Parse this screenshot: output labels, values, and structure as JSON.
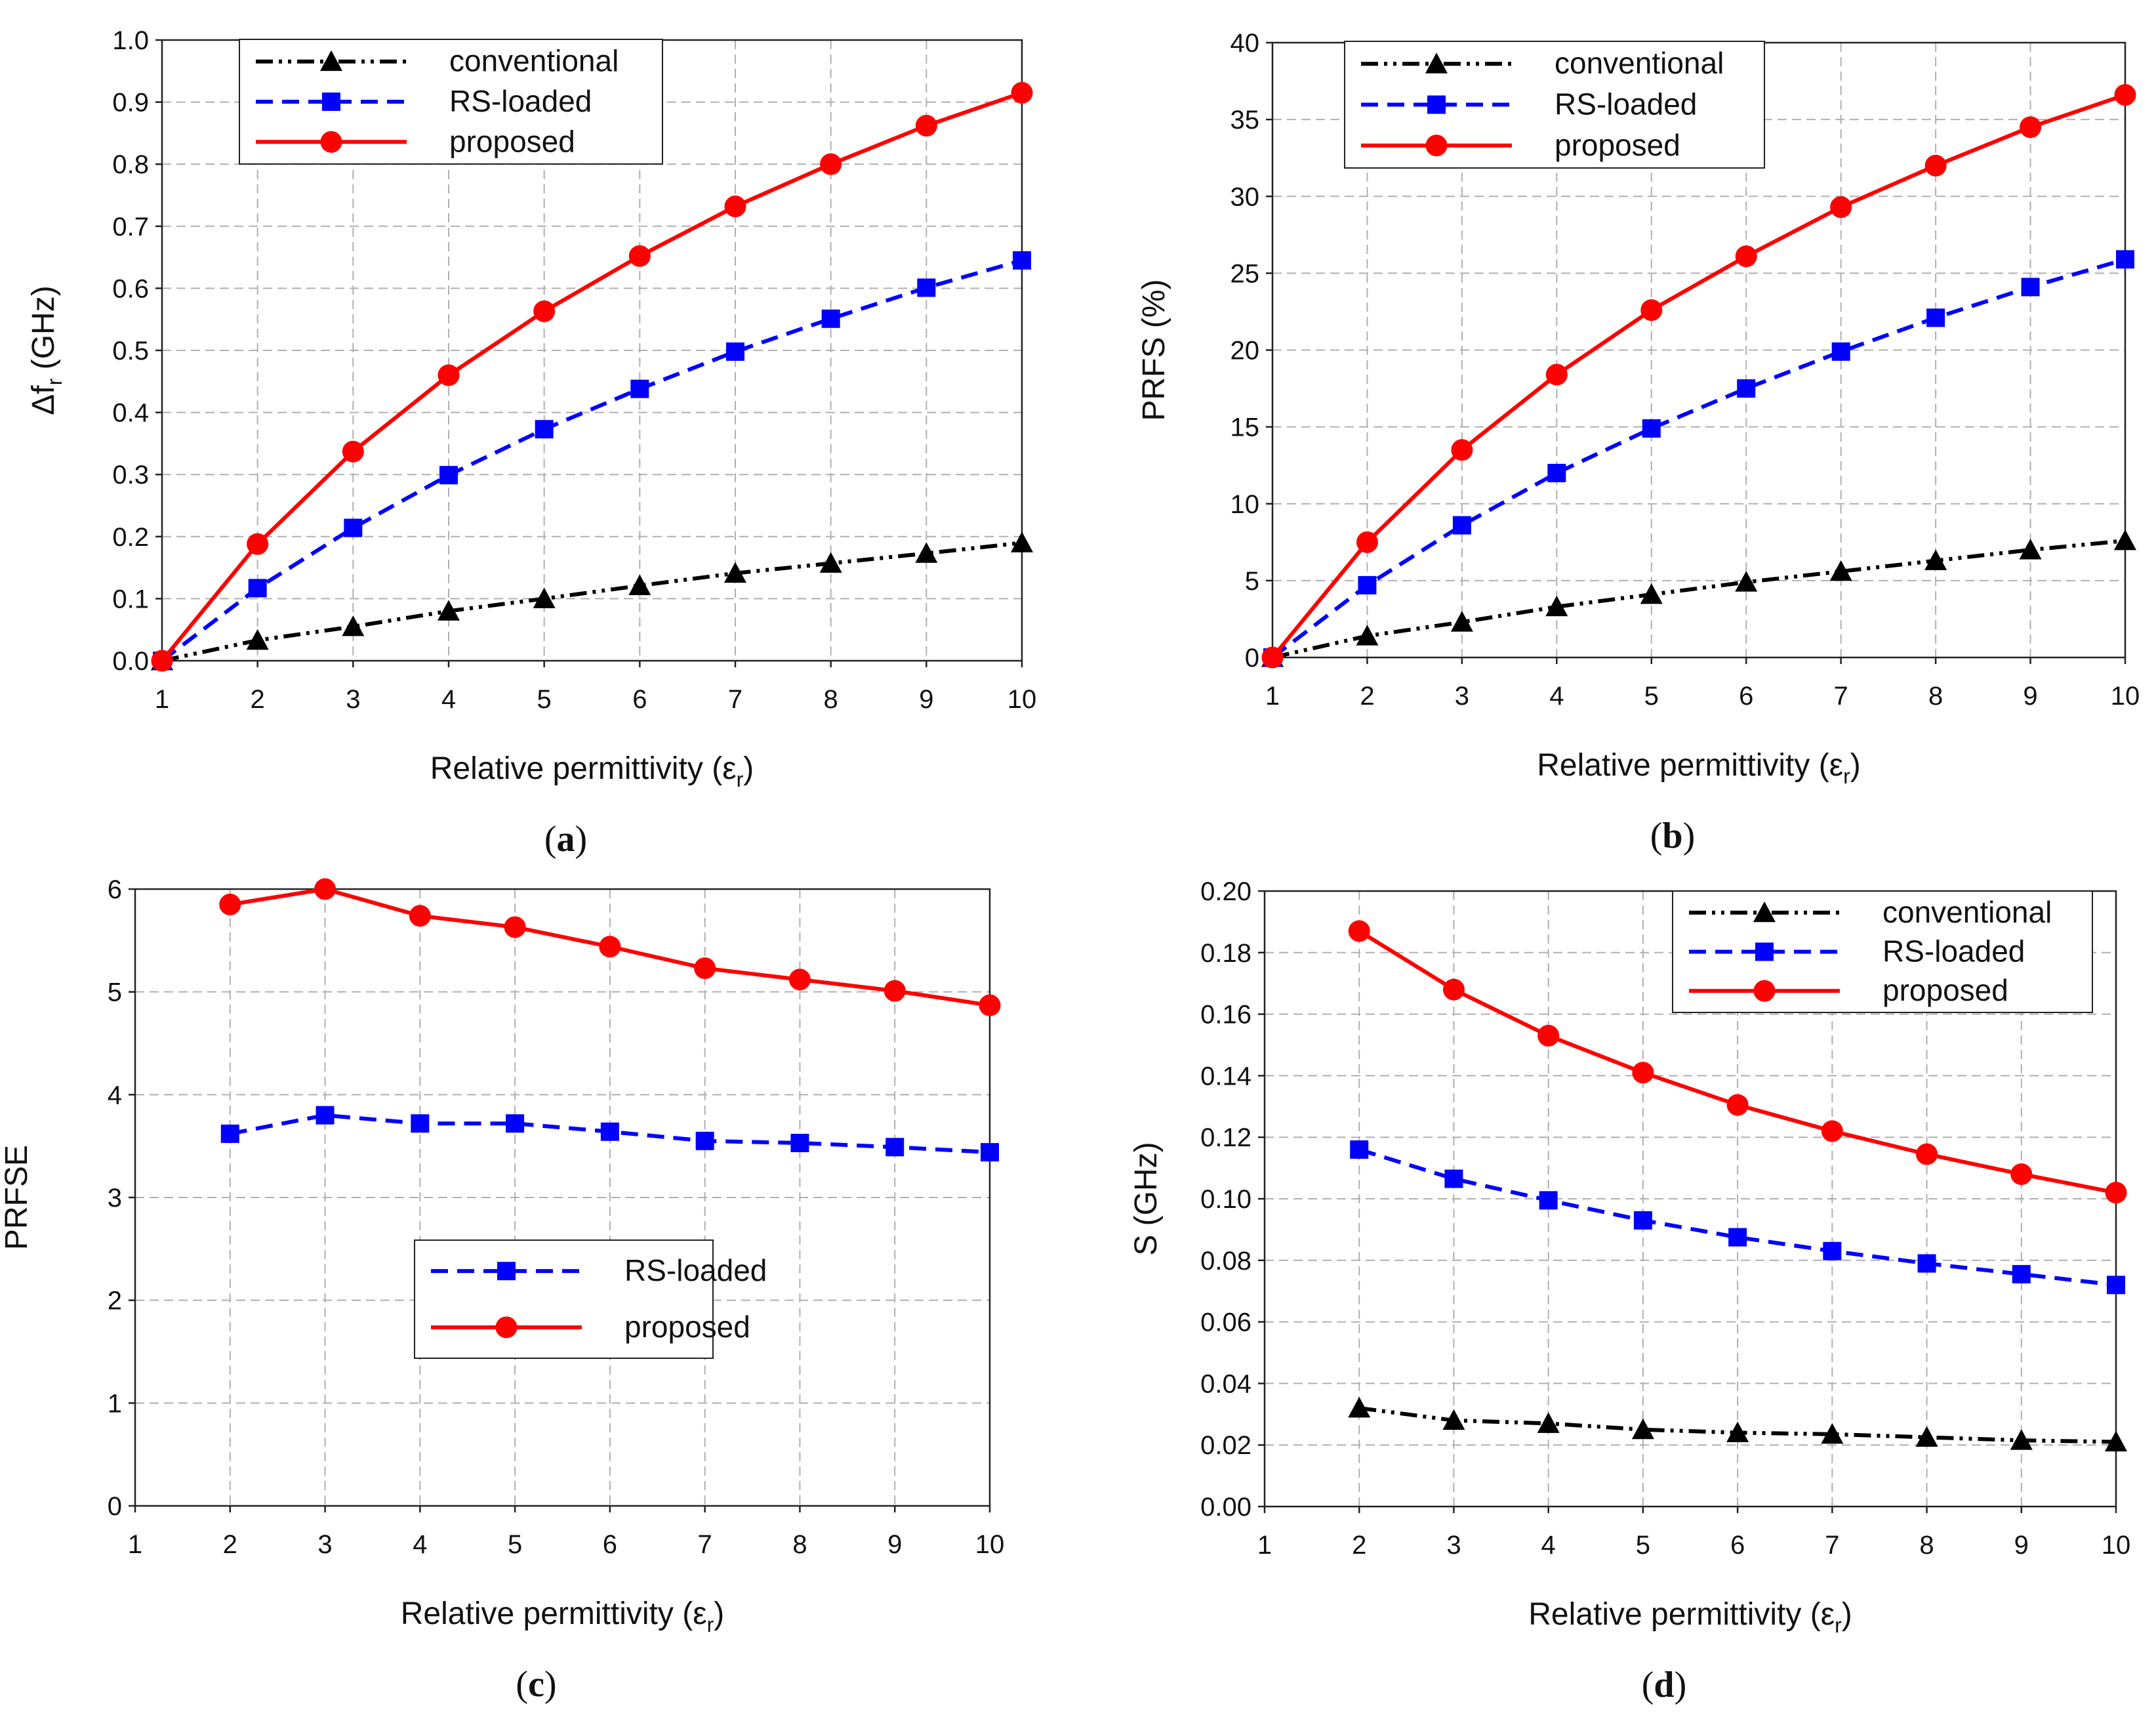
{
  "colors": {
    "conventional": "#000000",
    "rs_loaded": "#0000ff",
    "proposed": "#ff0000",
    "grid": "#b0b0b0",
    "axis": "#222222"
  },
  "chart_data": [
    {
      "type": "line",
      "panel_label": "(a)",
      "panel_letter": "a",
      "xlabel": "Relative permittivity (ε",
      "xlabel_sub": "r",
      "ylabel": "Δf",
      "ylabel_sub": "r",
      "ylabel_suffix": " (GHz)",
      "x": [
        1,
        2,
        3,
        4,
        5,
        6,
        7,
        8,
        9,
        10
      ],
      "xlim": [
        1,
        10
      ],
      "ylim": [
        0,
        1.0
      ],
      "ystep": 0.1,
      "ydecimals": 1,
      "xticks": [
        "1",
        "2",
        "3",
        "4",
        "5",
        "6",
        "7",
        "8",
        "9",
        "10"
      ],
      "grid": true,
      "legend_position": "top-left",
      "series": [
        {
          "name": "conventional",
          "key": "conventional",
          "marker": "triangle",
          "dash": "dashdotdot",
          "x": [
            1,
            2,
            3,
            4,
            5,
            6,
            7,
            8,
            9,
            10
          ],
          "values": [
            0,
            0.033,
            0.055,
            0.08,
            0.1,
            0.121,
            0.141,
            0.157,
            0.173,
            0.19
          ]
        },
        {
          "name": "RS-loaded",
          "key": "rs_loaded",
          "marker": "square",
          "dash": "dashed",
          "x": [
            1,
            2,
            3,
            4,
            5,
            6,
            7,
            8,
            9,
            10
          ],
          "values": [
            0,
            0.117,
            0.214,
            0.299,
            0.373,
            0.438,
            0.498,
            0.551,
            0.601,
            0.645
          ]
        },
        {
          "name": "proposed",
          "key": "proposed",
          "marker": "circle",
          "dash": "solid",
          "x": [
            1,
            2,
            3,
            4,
            5,
            6,
            7,
            8,
            9,
            10
          ],
          "values": [
            0,
            0.188,
            0.337,
            0.46,
            0.563,
            0.652,
            0.732,
            0.8,
            0.862,
            0.915
          ]
        }
      ]
    },
    {
      "type": "line",
      "panel_label": "(b)",
      "panel_letter": "b",
      "xlabel": "Relative permittivity (ε",
      "xlabel_sub": "r",
      "ylabel": "PRFS (%)",
      "ylabel_sub": "",
      "ylabel_suffix": "",
      "x": [
        1,
        2,
        3,
        4,
        5,
        6,
        7,
        8,
        9,
        10
      ],
      "xlim": [
        1,
        10
      ],
      "ylim": [
        0,
        40
      ],
      "ystep": 5,
      "ydecimals": 0,
      "xticks": [
        "1",
        "2",
        "3",
        "4",
        "5",
        "6",
        "7",
        "8",
        "9",
        "10"
      ],
      "grid": true,
      "legend_position": "top-left",
      "series": [
        {
          "name": "conventional",
          "key": "conventional",
          "marker": "triangle",
          "dash": "dashdotdot",
          "x": [
            1,
            2,
            3,
            4,
            5,
            6,
            7,
            8,
            9,
            10
          ],
          "values": [
            0,
            1.4,
            2.3,
            3.3,
            4.1,
            4.9,
            5.6,
            6.3,
            7.0,
            7.6
          ]
        },
        {
          "name": "RS-loaded",
          "key": "rs_loaded",
          "marker": "square",
          "dash": "dashed",
          "x": [
            1,
            2,
            3,
            4,
            5,
            6,
            7,
            8,
            9,
            10
          ],
          "values": [
            0,
            4.7,
            8.6,
            12.0,
            14.9,
            17.5,
            19.9,
            22.1,
            24.1,
            25.9
          ]
        },
        {
          "name": "proposed",
          "key": "proposed",
          "marker": "circle",
          "dash": "solid",
          "x": [
            1,
            2,
            3,
            4,
            5,
            6,
            7,
            8,
            9,
            10
          ],
          "values": [
            0,
            7.5,
            13.5,
            18.4,
            22.6,
            26.1,
            29.3,
            32.0,
            34.5,
            36.6
          ]
        }
      ]
    },
    {
      "type": "line",
      "panel_label": "(c)",
      "panel_letter": "c",
      "xlabel": "Relative permittivity (ε",
      "xlabel_sub": "r",
      "ylabel": "PRFSE",
      "ylabel_sub": "",
      "ylabel_suffix": "",
      "x": [
        1,
        2,
        3,
        4,
        5,
        6,
        7,
        8,
        9,
        10
      ],
      "xlim": [
        1,
        10
      ],
      "ylim": [
        0,
        6
      ],
      "ystep": 1,
      "ydecimals": 0,
      "xticks": [
        "1",
        "2",
        "3",
        "4",
        "5",
        "6",
        "7",
        "8",
        "9",
        "10"
      ],
      "grid": true,
      "legend_position": "center-left",
      "series": [
        {
          "name": "RS-loaded",
          "key": "rs_loaded",
          "marker": "square",
          "dash": "dashed",
          "x": [
            2,
            3,
            4,
            5,
            6,
            7,
            8,
            9,
            10
          ],
          "values": [
            3.62,
            3.8,
            3.72,
            3.72,
            3.64,
            3.55,
            3.53,
            3.49,
            3.44
          ]
        },
        {
          "name": "proposed",
          "key": "proposed",
          "marker": "circle",
          "dash": "solid",
          "x": [
            2,
            3,
            4,
            5,
            6,
            7,
            8,
            9,
            10
          ],
          "values": [
            5.85,
            6.0,
            5.74,
            5.63,
            5.44,
            5.23,
            5.12,
            5.01,
            4.87
          ]
        }
      ]
    },
    {
      "type": "line",
      "panel_label": "(d)",
      "panel_letter": "d",
      "xlabel": "Relative permittivity (ε",
      "xlabel_sub": "r",
      "ylabel": "S (GHz)",
      "ylabel_sub": "",
      "ylabel_suffix": "",
      "x": [
        1,
        2,
        3,
        4,
        5,
        6,
        7,
        8,
        9,
        10
      ],
      "xlim": [
        1,
        10
      ],
      "ylim": [
        0,
        0.2
      ],
      "ystep": 0.02,
      "ydecimals": 2,
      "xticks": [
        "1",
        "2",
        "3",
        "4",
        "5",
        "6",
        "7",
        "8",
        "9",
        "10"
      ],
      "grid": true,
      "legend_position": "top-right",
      "series": [
        {
          "name": "conventional",
          "key": "conventional",
          "marker": "triangle",
          "dash": "dashdotdot",
          "x": [
            2,
            3,
            4,
            5,
            6,
            7,
            8,
            9,
            10
          ],
          "values": [
            0.032,
            0.028,
            0.027,
            0.025,
            0.024,
            0.0235,
            0.0225,
            0.0215,
            0.021
          ]
        },
        {
          "name": "RS-loaded",
          "key": "rs_loaded",
          "marker": "square",
          "dash": "dashed",
          "x": [
            2,
            3,
            4,
            5,
            6,
            7,
            8,
            9,
            10
          ],
          "values": [
            0.116,
            0.1065,
            0.0995,
            0.093,
            0.0875,
            0.083,
            0.079,
            0.0755,
            0.072
          ]
        },
        {
          "name": "proposed",
          "key": "proposed",
          "marker": "circle",
          "dash": "solid",
          "x": [
            2,
            3,
            4,
            5,
            6,
            7,
            8,
            9,
            10
          ],
          "values": [
            0.187,
            0.168,
            0.153,
            0.141,
            0.1305,
            0.122,
            0.1145,
            0.108,
            0.102
          ]
        }
      ]
    }
  ]
}
